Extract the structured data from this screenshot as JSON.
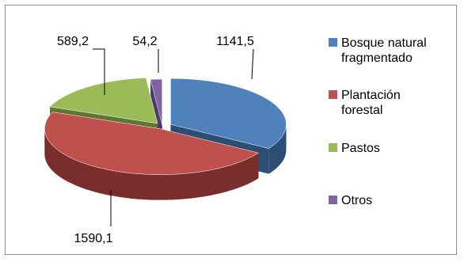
{
  "chart_data": {
    "type": "pie",
    "style": "3d-exploded",
    "title": "",
    "slices": [
      {
        "label": "Bosque natural fragmentado",
        "value": 1141.5,
        "value_text": "1141,5",
        "color": "#4F81BD",
        "side": "#2E4D73"
      },
      {
        "label": "Plantación forestal",
        "value": 1590.1,
        "value_text": "1590,1",
        "color": "#C0504D",
        "side": "#7A2E2C"
      },
      {
        "label": "Pastos",
        "value": 589.2,
        "value_text": "589,2",
        "color": "#9BBB59",
        "side": "#5E7533"
      },
      {
        "label": "Otros",
        "value": 54.2,
        "value_text": "54,2",
        "color": "#8064A2",
        "side": "#4E3A66"
      }
    ],
    "legend": {
      "placement": "right",
      "entries": [
        {
          "lines": [
            "Bosque natural",
            "fragmentado"
          ]
        },
        {
          "lines": [
            "Plantación",
            "forestal"
          ]
        },
        {
          "lines": [
            "Pastos"
          ]
        },
        {
          "lines": [
            "Otros"
          ]
        }
      ]
    }
  }
}
